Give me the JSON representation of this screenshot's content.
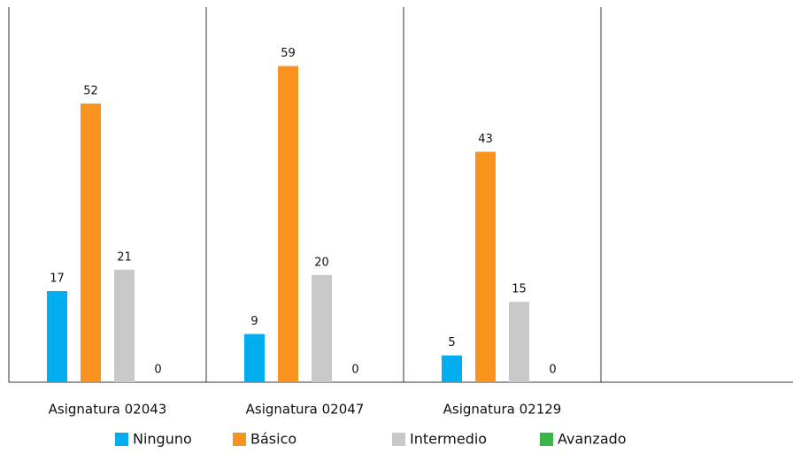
{
  "chart_data": {
    "type": "bar",
    "categories": [
      "Asignatura 02043",
      "Asignatura 02047",
      "Asignatura 02129",
      null
    ],
    "series": [
      {
        "name": "Ninguno",
        "color": "#00adee",
        "values": [
          17,
          9,
          5,
          null
        ]
      },
      {
        "name": "Básico",
        "color": "#f7931e",
        "values": [
          52,
          59,
          43,
          null
        ]
      },
      {
        "name": "Intermedio",
        "color": "#c8c8c8",
        "values": [
          21,
          20,
          15,
          null
        ]
      },
      {
        "name": "Avanzado",
        "color": "#39b54a",
        "values": [
          0,
          0,
          0,
          null
        ]
      }
    ],
    "ylim": [
      0,
      70
    ],
    "legend": "bottom"
  }
}
